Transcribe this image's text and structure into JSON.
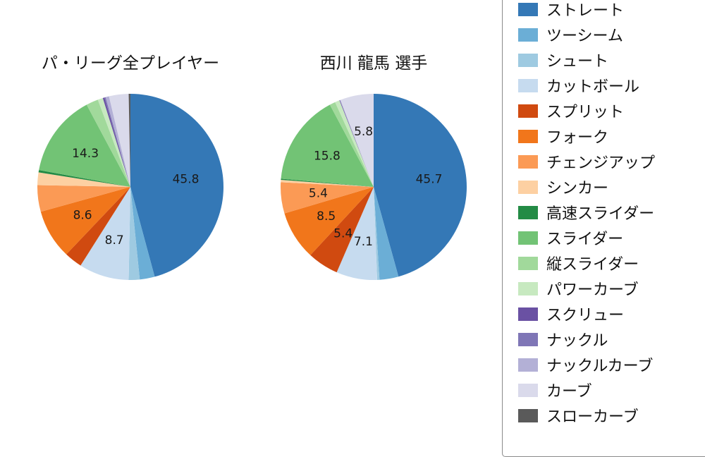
{
  "legend": {
    "items": [
      {
        "label": "ストレート",
        "color": "#3478b6"
      },
      {
        "label": "ツーシーム",
        "color": "#6baed6"
      },
      {
        "label": "シュート",
        "color": "#9ecae1"
      },
      {
        "label": "カットボール",
        "color": "#c6dbef"
      },
      {
        "label": "スプリット",
        "color": "#d04a10"
      },
      {
        "label": "フォーク",
        "color": "#f1761b"
      },
      {
        "label": "チェンジアップ",
        "color": "#fb9a55"
      },
      {
        "label": "シンカー",
        "color": "#fdd0a2"
      },
      {
        "label": "高速スライダー",
        "color": "#238b45"
      },
      {
        "label": "スライダー",
        "color": "#72c375"
      },
      {
        "label": "縦スライダー",
        "color": "#a1d99b"
      },
      {
        "label": "パワーカーブ",
        "color": "#c7e9c0"
      },
      {
        "label": "スクリュー",
        "color": "#6a51a3"
      },
      {
        "label": "ナックル",
        "color": "#7f76b6"
      },
      {
        "label": "ナックルカーブ",
        "color": "#b3b0d6"
      },
      {
        "label": "カーブ",
        "color": "#dadaeb"
      },
      {
        "label": "スローカーブ",
        "color": "#5a5a5a"
      }
    ]
  },
  "chart_data": [
    {
      "type": "pie",
      "title": "パ・リーグ全プレイヤー",
      "start_angle": "top",
      "direction": "clockwise",
      "label_threshold": 5,
      "labels": [
        "ストレート",
        "ツーシーム",
        "シュート",
        "カットボール",
        "スプリット",
        "フォーク",
        "チェンジアップ",
        "シンカー",
        "高速スライダー",
        "スライダー",
        "縦スライダー",
        "パワーカーブ",
        "スクリュー",
        "ナックル",
        "ナックルカーブ",
        "カーブ",
        "スローカーブ"
      ],
      "values": [
        45.8,
        2.6,
        1.9,
        8.7,
        3.1,
        8.6,
        4.6,
        2.2,
        0.4,
        14.3,
        2.1,
        0.9,
        0.3,
        0.2,
        0.6,
        3.4,
        0.3
      ],
      "shown_value_labels": [
        "45.8",
        "8.7",
        "8.6",
        "14.3"
      ]
    },
    {
      "type": "pie",
      "title": "西川 龍馬 選手",
      "start_angle": "top",
      "direction": "clockwise",
      "label_threshold": 5,
      "labels": [
        "ストレート",
        "ツーシーム",
        "シュート",
        "カットボール",
        "スプリット",
        "フォーク",
        "チェンジアップ",
        "シンカー",
        "高速スライダー",
        "スライダー",
        "縦スライダー",
        "パワーカーブ",
        "スクリュー",
        "ナックル",
        "ナックルカーブ",
        "カーブ",
        "スローカーブ"
      ],
      "values": [
        45.7,
        3.3,
        0.4,
        7.1,
        5.4,
        8.5,
        5.4,
        0.4,
        0.2,
        15.8,
        1.0,
        0.8,
        0.1,
        0.0,
        0.1,
        5.8,
        0.0
      ],
      "shown_value_labels": [
        "45.7",
        "7.1",
        "5.4",
        "8.5",
        "5.4",
        "15.8",
        "5.8"
      ]
    }
  ]
}
